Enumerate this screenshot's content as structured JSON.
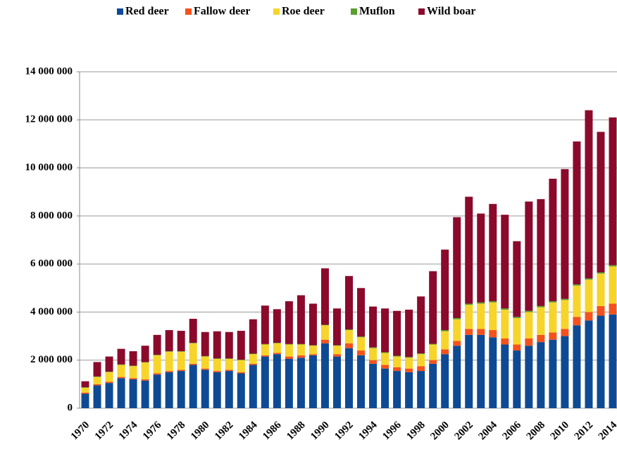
{
  "chart_data": {
    "type": "stacked_bar",
    "categories": [
      "1970",
      null,
      "1972",
      null,
      "1974",
      null,
      "1976",
      null,
      "1978",
      null,
      "1980",
      null,
      "1982",
      null,
      "1984",
      null,
      "1986",
      null,
      "1988",
      null,
      "1990",
      null,
      "1992",
      null,
      "1994",
      null,
      "1996",
      null,
      "1998",
      null,
      "2000",
      null,
      "2002",
      null,
      "2004",
      null,
      "2006",
      null,
      "2008",
      null,
      "2010",
      null,
      "2012",
      null,
      "2014"
    ],
    "series": [
      {
        "name": "Red deer",
        "color": "#0e4a94",
        "values": [
          600000,
          950000,
          1050000,
          1250000,
          1200000,
          1150000,
          1400000,
          1500000,
          1550000,
          1800000,
          1600000,
          1500000,
          1550000,
          1450000,
          1800000,
          2150000,
          2250000,
          2050000,
          2100000,
          2200000,
          2700000,
          2150000,
          2500000,
          2200000,
          1850000,
          1650000,
          1550000,
          1500000,
          1550000,
          1850000,
          2250000,
          2600000,
          3050000,
          3050000,
          2950000,
          2650000,
          2400000,
          2600000,
          2750000,
          2850000,
          3000000,
          3450000,
          3650000,
          3850000,
          3900000
        ]
      },
      {
        "name": "Fallow deer",
        "color": "#f4521c",
        "values": [
          50000,
          50000,
          50000,
          50000,
          50000,
          50000,
          50000,
          50000,
          50000,
          50000,
          50000,
          50000,
          50000,
          50000,
          50000,
          50000,
          50000,
          100000,
          100000,
          50000,
          150000,
          100000,
          200000,
          200000,
          150000,
          150000,
          150000,
          150000,
          200000,
          150000,
          200000,
          200000,
          250000,
          250000,
          300000,
          250000,
          250000,
          300000,
          300000,
          300000,
          300000,
          350000,
          350000,
          400000,
          450000
        ]
      },
      {
        "name": "Roe deer",
        "color": "#f7d42a",
        "values": [
          200000,
          300000,
          400000,
          500000,
          500000,
          700000,
          750000,
          800000,
          750000,
          850000,
          500000,
          500000,
          450000,
          500000,
          400000,
          450000,
          400000,
          500000,
          450000,
          350000,
          600000,
          350000,
          550000,
          550000,
          500000,
          500000,
          450000,
          450000,
          500000,
          650000,
          750000,
          900000,
          1000000,
          1050000,
          1150000,
          1200000,
          1100000,
          1100000,
          1150000,
          1250000,
          1200000,
          1300000,
          1350000,
          1350000,
          1550000
        ]
      },
      {
        "name": "Muflon",
        "color": "#5aa02c",
        "values": [
          20000,
          20000,
          20000,
          20000,
          20000,
          20000,
          20000,
          20000,
          20000,
          20000,
          20000,
          20000,
          20000,
          20000,
          20000,
          20000,
          20000,
          20000,
          20000,
          20000,
          20000,
          20000,
          30000,
          30000,
          30000,
          30000,
          30000,
          30000,
          30000,
          30000,
          50000,
          50000,
          50000,
          50000,
          50000,
          50000,
          50000,
          50000,
          50000,
          50000,
          50000,
          50000,
          50000,
          50000,
          50000
        ]
      },
      {
        "name": "Wild boar",
        "color": "#8b0a2b",
        "values": [
          250000,
          600000,
          630000,
          650000,
          600000,
          680000,
          830000,
          880000,
          850000,
          1000000,
          1000000,
          1130000,
          1100000,
          1200000,
          1430000,
          1600000,
          1400000,
          1780000,
          2030000,
          1730000,
          2350000,
          1530000,
          2220000,
          2020000,
          1700000,
          1820000,
          1870000,
          1970000,
          2370000,
          3020000,
          3350000,
          4200000,
          4450000,
          3700000,
          4050000,
          3900000,
          3150000,
          4550000,
          4450000,
          5100000,
          5400000,
          5950000,
          7000000,
          5850000,
          6150000
        ]
      }
    ],
    "ylim": [
      0,
      14000000
    ],
    "yticks": [
      0,
      {
        "value": 2000000,
        "label": "2 000 000"
      },
      {
        "value": 4000000,
        "label": "4 000 000"
      },
      {
        "value": 6000000,
        "label": "6 000 000"
      },
      {
        "value": 8000000,
        "label": "8 000 000"
      },
      {
        "value": 10000000,
        "label": "10 000 000"
      },
      {
        "value": 12000000,
        "label": "12 000 000"
      },
      {
        "value": 14000000,
        "label": "14 000 000"
      }
    ],
    "grid": true,
    "legend": "top"
  }
}
